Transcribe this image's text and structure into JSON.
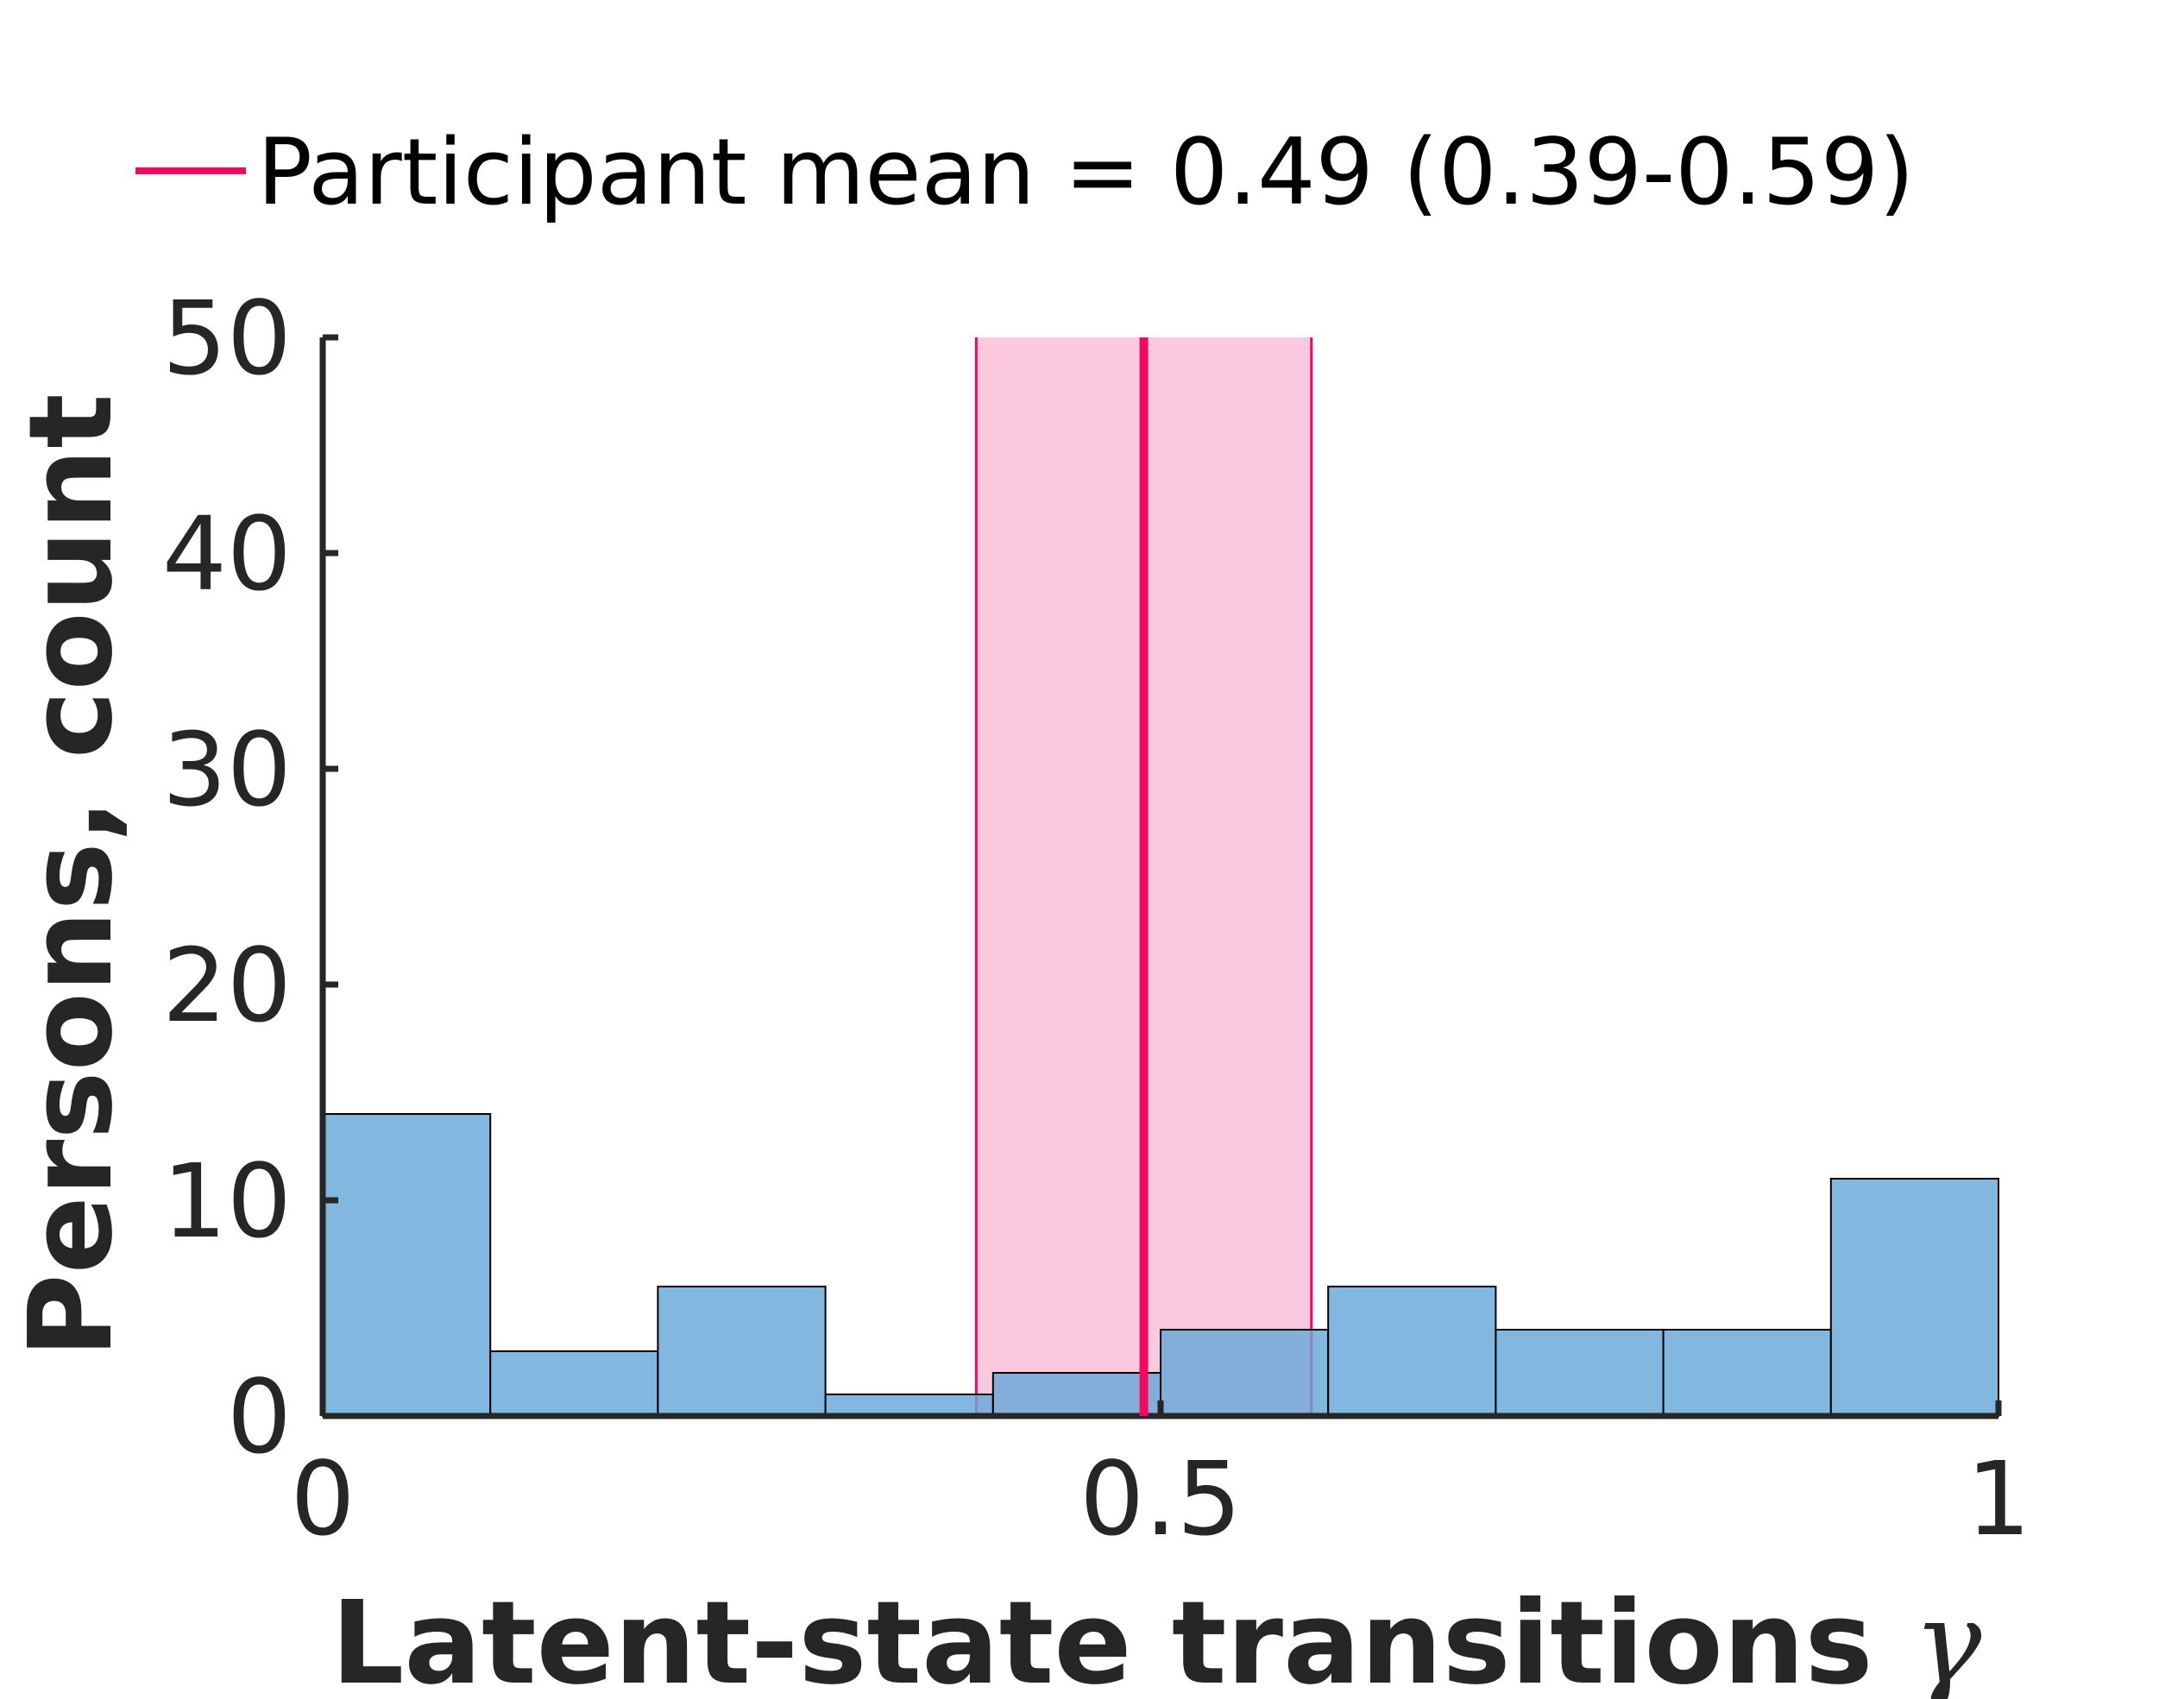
{
  "chart_data": {
    "type": "bar",
    "subtype": "histogram",
    "bin_edges": [
      0,
      0.1,
      0.2,
      0.3,
      0.4,
      0.5,
      0.6,
      0.7,
      0.8,
      0.9,
      1.0
    ],
    "counts": [
      14,
      3,
      6,
      1,
      2,
      4,
      6,
      4,
      4,
      11
    ],
    "xlabel_text": "Latent-state transitions",
    "xlabel_symbol": "γ",
    "ylabel": "Persons, count",
    "xlim": [
      0,
      1
    ],
    "ylim": [
      0,
      50
    ],
    "xticks": [
      0,
      0.5,
      1
    ],
    "xtick_labels": [
      "0",
      "0.5",
      "1"
    ],
    "yticks": [
      0,
      10,
      20,
      30,
      40,
      50
    ],
    "ytick_labels": [
      "0",
      "10",
      "20",
      "30",
      "40",
      "50"
    ],
    "grid": false,
    "legend_position": "top",
    "mean_line": {
      "value": 0.49,
      "ci": [
        0.39,
        0.59
      ],
      "legend_label": "Participant mean = 0.49 (0.39-0.59)"
    },
    "colors": {
      "bars": "#66a8d8",
      "mean": "#f2085f",
      "ci_fill": "#fbc9dd",
      "axis": "#262626"
    }
  }
}
